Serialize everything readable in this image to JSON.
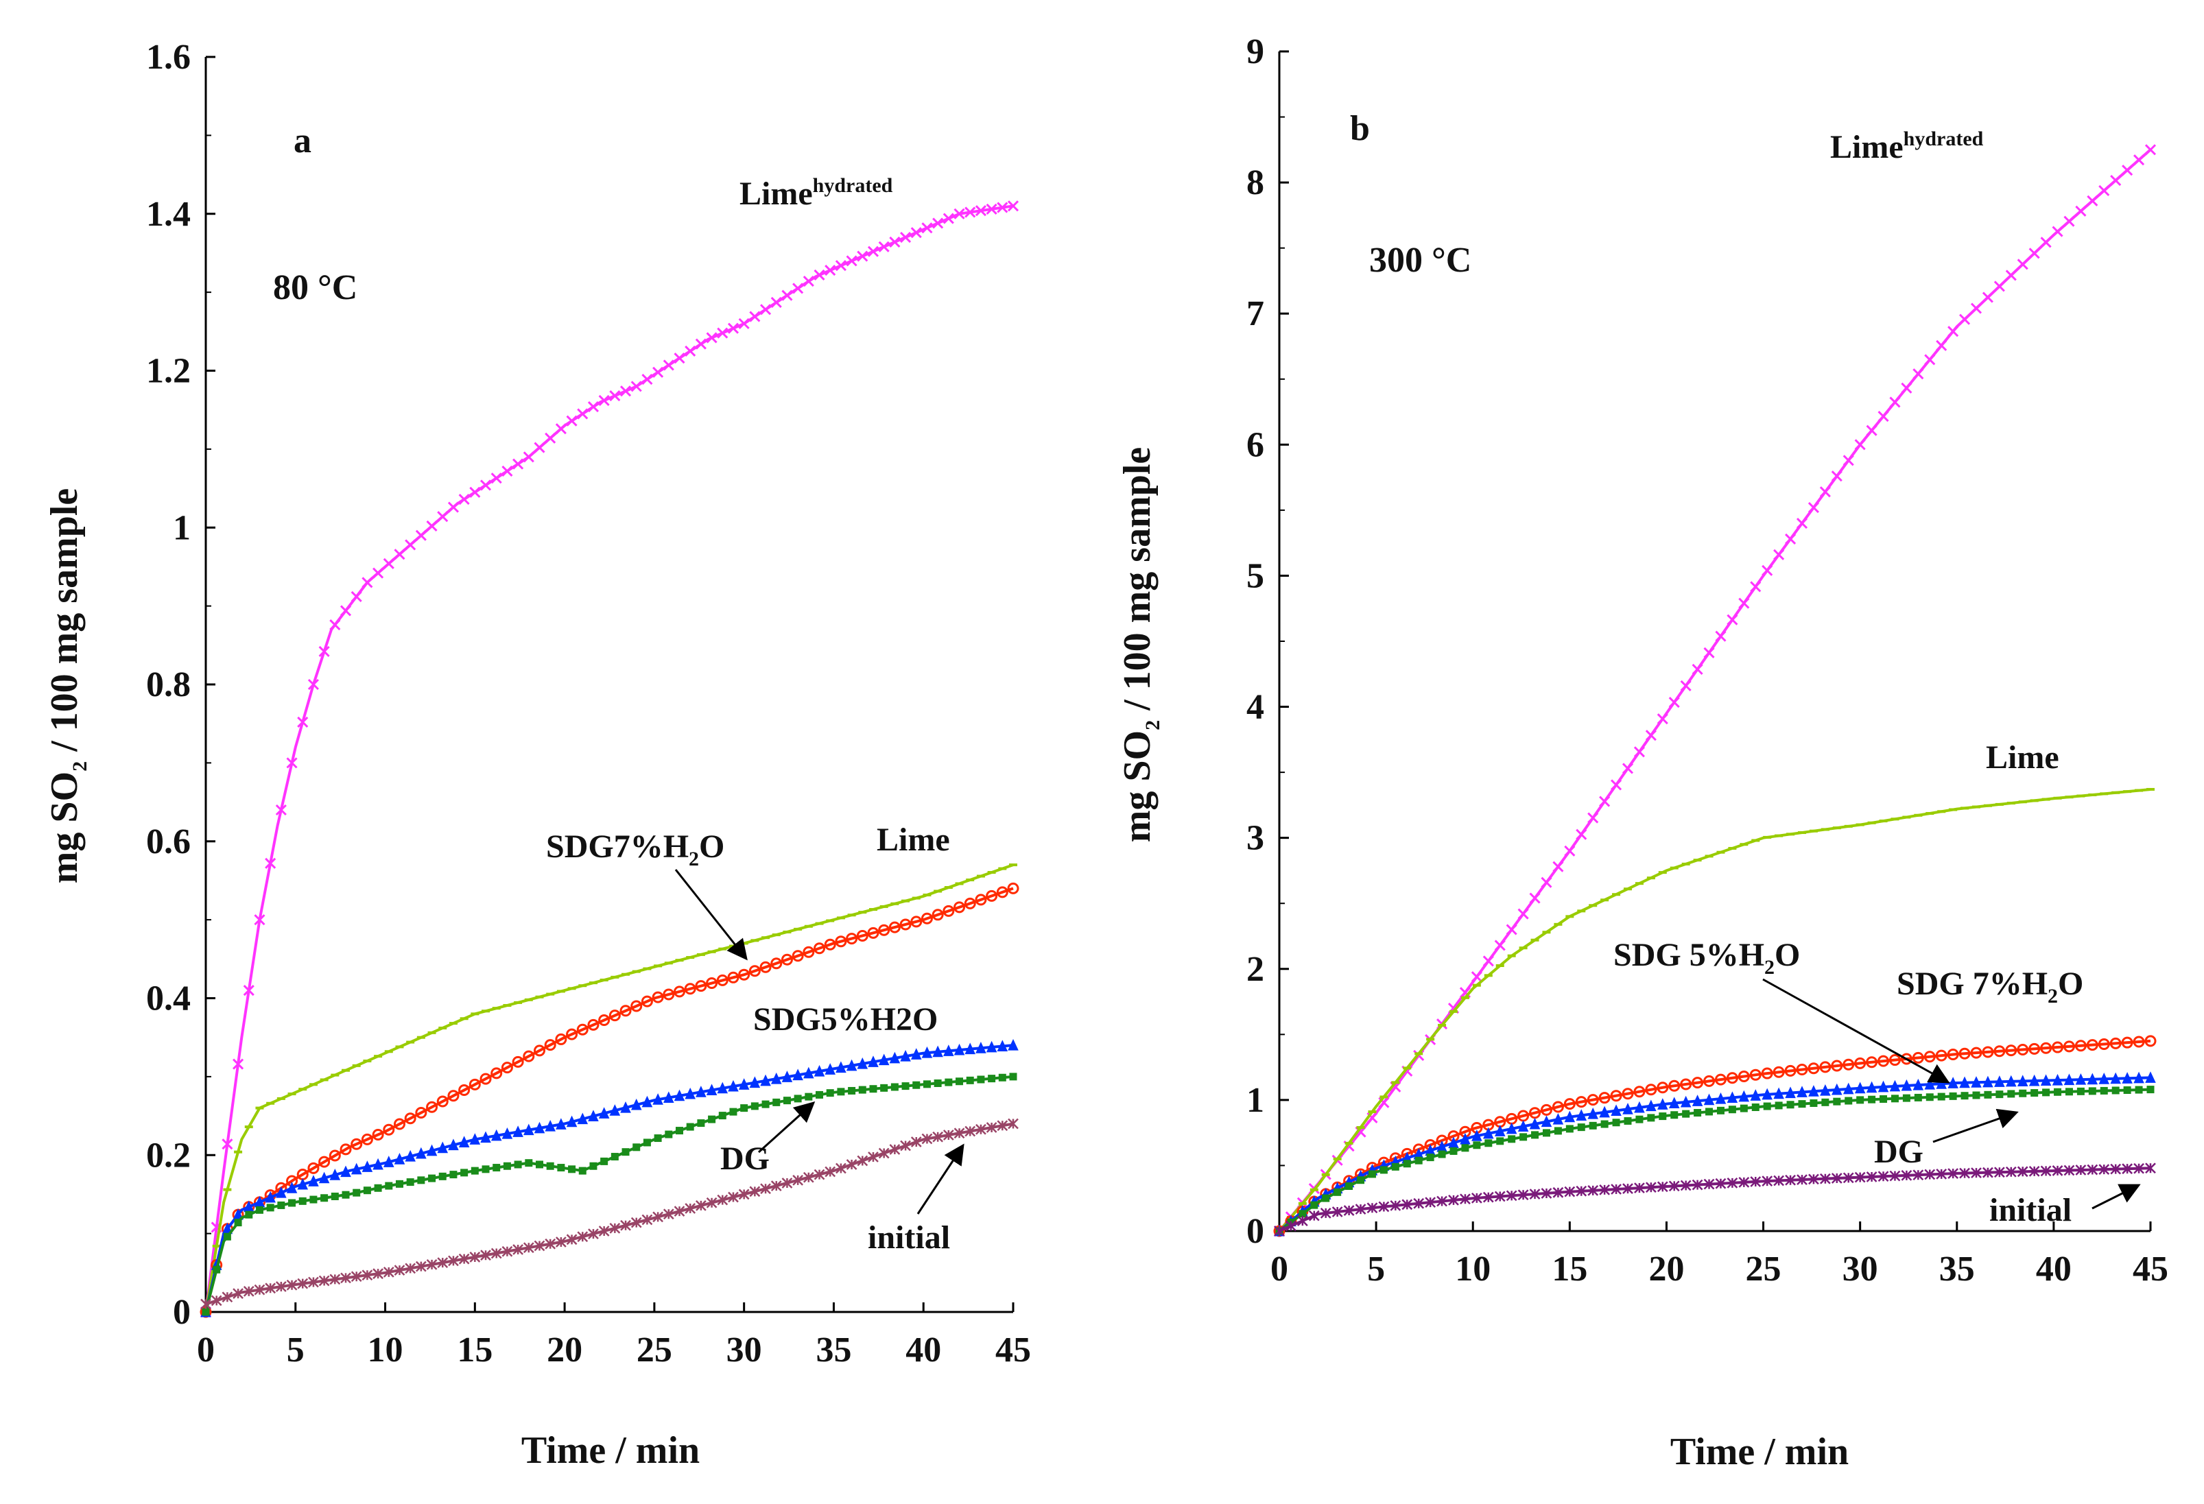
{
  "chart_data": [
    {
      "type": "line",
      "panel_label": "a",
      "condition": "80 °C",
      "xlabel": "Time / min",
      "ylabel_parts": [
        "mg SO",
        "2",
        " / 100 mg sample"
      ],
      "xlim": [
        0,
        45
      ],
      "ylim": [
        0,
        1.6
      ],
      "xticks": [
        "0",
        "5",
        "10",
        "15",
        "20",
        "25",
        "30",
        "35",
        "40",
        "45"
      ],
      "yticks": [
        "0",
        "0.2",
        "0.4",
        "0.6",
        "0.8",
        "1",
        "1.2",
        "1.4",
        "1.6"
      ],
      "series": [
        {
          "name": "Limehydrated",
          "color": "#ff33ff",
          "marker": "x",
          "x": [
            0,
            1,
            2,
            3,
            4,
            5,
            6,
            7,
            8,
            9,
            10,
            12,
            14,
            16,
            18,
            20,
            22,
            24,
            26,
            28,
            30,
            32,
            34,
            36,
            38,
            40,
            42,
            45
          ],
          "y": [
            0,
            0.18,
            0.35,
            0.5,
            0.62,
            0.72,
            0.8,
            0.87,
            0.9,
            0.93,
            0.95,
            0.99,
            1.03,
            1.06,
            1.09,
            1.13,
            1.16,
            1.18,
            1.21,
            1.24,
            1.26,
            1.29,
            1.32,
            1.34,
            1.36,
            1.38,
            1.4,
            1.41
          ]
        },
        {
          "name": "Lime",
          "color": "#99cc00",
          "marker": "dash",
          "x": [
            0,
            1,
            2,
            3,
            5,
            8,
            10,
            15,
            20,
            25,
            30,
            35,
            40,
            45
          ],
          "y": [
            0,
            0.14,
            0.22,
            0.26,
            0.28,
            0.31,
            0.33,
            0.38,
            0.41,
            0.44,
            0.47,
            0.5,
            0.53,
            0.57
          ]
        },
        {
          "name": "SDG7%H2O",
          "color": "#ff2a00",
          "marker": "circle",
          "x": [
            0,
            1,
            2,
            3,
            5,
            8,
            10,
            15,
            20,
            25,
            30,
            35,
            40,
            45
          ],
          "y": [
            0,
            0.1,
            0.13,
            0.14,
            0.17,
            0.21,
            0.23,
            0.29,
            0.35,
            0.4,
            0.43,
            0.47,
            0.5,
            0.54
          ]
        },
        {
          "name": "SDG5%H2O",
          "color": "#0033ff",
          "marker": "triangle",
          "x": [
            0,
            1,
            2,
            3,
            5,
            8,
            10,
            15,
            20,
            25,
            30,
            35,
            40,
            45
          ],
          "y": [
            0,
            0.1,
            0.13,
            0.14,
            0.16,
            0.18,
            0.19,
            0.22,
            0.24,
            0.27,
            0.29,
            0.31,
            0.33,
            0.34
          ]
        },
        {
          "name": "DG",
          "color": "#1a8c1a",
          "marker": "square",
          "x": [
            0,
            1,
            2,
            3,
            5,
            8,
            10,
            15,
            18,
            21,
            25,
            30,
            35,
            40,
            45
          ],
          "y": [
            0,
            0.09,
            0.12,
            0.13,
            0.14,
            0.15,
            0.16,
            0.18,
            0.19,
            0.18,
            0.22,
            0.26,
            0.28,
            0.29,
            0.3
          ]
        },
        {
          "name": "initial",
          "color": "#994466",
          "marker": "star",
          "x": [
            0,
            2,
            5,
            10,
            15,
            20,
            25,
            30,
            35,
            40,
            45
          ],
          "y": [
            0.01,
            0.025,
            0.035,
            0.05,
            0.07,
            0.09,
            0.12,
            0.15,
            0.18,
            0.22,
            0.24
          ]
        }
      ],
      "annotations": [
        {
          "text": "Lime",
          "sup": "hydrated"
        },
        {
          "text": "Lime"
        },
        {
          "text": "SDG7%H",
          "sub": "2",
          "tail": "O"
        },
        {
          "text": "SDG5%H2O"
        },
        {
          "text": "DG"
        },
        {
          "text": "initial"
        }
      ]
    },
    {
      "type": "line",
      "panel_label": "b",
      "condition": "300 °C",
      "xlabel": "Time / min",
      "ylabel_parts": [
        "mg SO",
        "2",
        "  / 100 mg sample"
      ],
      "xlim": [
        0,
        45
      ],
      "ylim": [
        0,
        9
      ],
      "xticks": [
        "0",
        "5",
        "10",
        "15",
        "20",
        "25",
        "30",
        "35",
        "40",
        "45"
      ],
      "yticks": [
        "0",
        "1",
        "2",
        "3",
        "4",
        "5",
        "6",
        "7",
        "8",
        "9"
      ],
      "series": [
        {
          "name": "Limehydrated",
          "color": "#ff33ff",
          "marker": "x",
          "x": [
            0,
            5,
            10,
            15,
            20,
            25,
            30,
            35,
            40,
            45
          ],
          "y": [
            0,
            0.9,
            1.9,
            2.9,
            3.95,
            5.0,
            6.0,
            6.9,
            7.6,
            8.25
          ]
        },
        {
          "name": "Lime",
          "color": "#99cc00",
          "marker": "dash",
          "x": [
            0,
            2,
            5,
            8,
            10,
            12,
            15,
            20,
            25,
            30,
            35,
            40,
            45
          ],
          "y": [
            0,
            0.35,
            0.95,
            1.5,
            1.85,
            2.1,
            2.4,
            2.75,
            3.0,
            3.1,
            3.22,
            3.3,
            3.37
          ]
        },
        {
          "name": "SDG 7%H2O",
          "color": "#ff2a00",
          "marker": "circle",
          "x": [
            0,
            2,
            5,
            10,
            15,
            20,
            25,
            30,
            35,
            40,
            45
          ],
          "y": [
            0,
            0.25,
            0.5,
            0.78,
            0.97,
            1.1,
            1.2,
            1.28,
            1.35,
            1.4,
            1.45
          ]
        },
        {
          "name": "SDG 5%H2O",
          "color": "#0033ff",
          "marker": "triangle",
          "x": [
            0,
            2,
            5,
            10,
            15,
            20,
            25,
            30,
            35,
            40,
            45
          ],
          "y": [
            0,
            0.25,
            0.48,
            0.72,
            0.87,
            0.97,
            1.04,
            1.09,
            1.13,
            1.15,
            1.17
          ]
        },
        {
          "name": "DG",
          "color": "#1a8c1a",
          "marker": "square",
          "x": [
            0,
            2,
            5,
            10,
            15,
            20,
            25,
            30,
            35,
            40,
            45
          ],
          "y": [
            0,
            0.22,
            0.45,
            0.65,
            0.78,
            0.88,
            0.95,
            1.0,
            1.03,
            1.06,
            1.08
          ]
        },
        {
          "name": "initial",
          "color": "#7a1a7a",
          "marker": "star",
          "x": [
            0,
            2,
            5,
            10,
            15,
            20,
            25,
            30,
            35,
            40,
            45
          ],
          "y": [
            0,
            0.13,
            0.18,
            0.25,
            0.3,
            0.34,
            0.38,
            0.41,
            0.44,
            0.46,
            0.48
          ]
        }
      ],
      "annotations": [
        {
          "text": "Lime",
          "sup": "hydrated"
        },
        {
          "text": "Lime"
        },
        {
          "text": "SDG 5%H",
          "sub": "2",
          "tail": "O"
        },
        {
          "text": "SDG 7%H",
          "sub": "2",
          "tail": "O"
        },
        {
          "text": "DG"
        },
        {
          "text": "initial"
        }
      ]
    }
  ]
}
